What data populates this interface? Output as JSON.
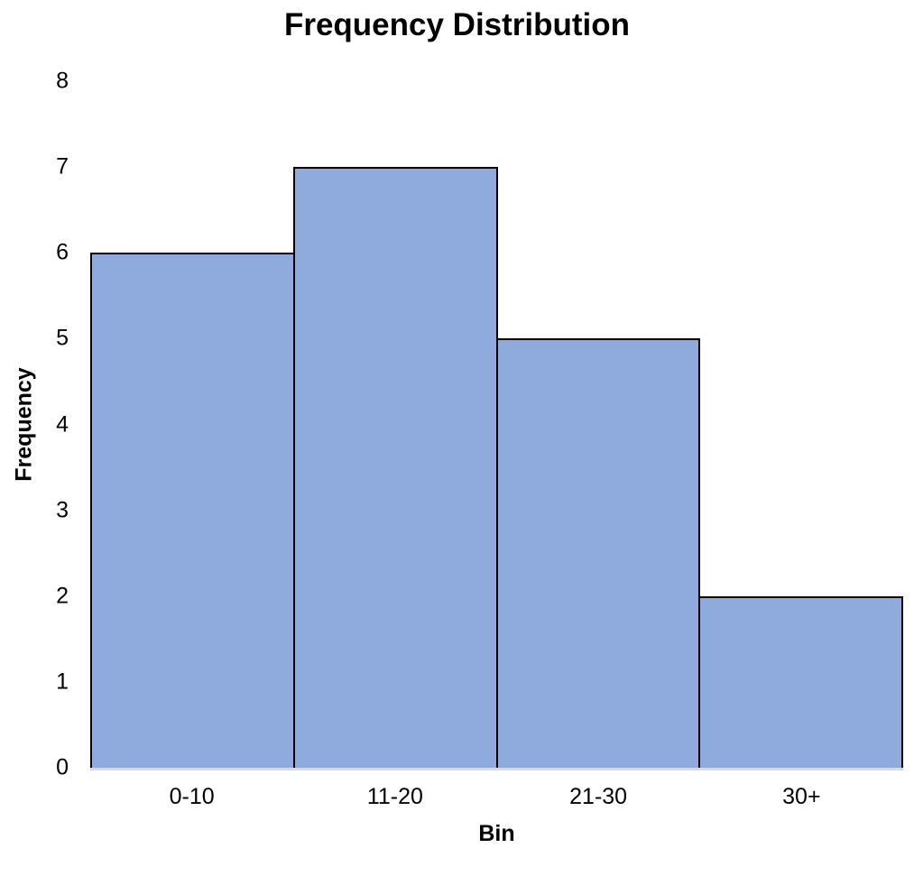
{
  "chart_data": {
    "type": "bar",
    "title": "Frequency Distribution",
    "xlabel": "Bin",
    "ylabel": "Frequency",
    "categories": [
      "0-10",
      "11-20",
      "21-30",
      "30+"
    ],
    "values": [
      6,
      7,
      5,
      2
    ],
    "ylim": [
      0,
      8
    ],
    "yticks": [
      0,
      1,
      2,
      3,
      4,
      5,
      6,
      7,
      8
    ],
    "grid": false,
    "legend": false,
    "bar_gap": 0,
    "bar_fill_color": "#8FAADC",
    "bar_border_color": "#000000",
    "axis_line_color": "#D9D9D9",
    "text_color": "#000000",
    "background_color": "#FFFFFF"
  }
}
